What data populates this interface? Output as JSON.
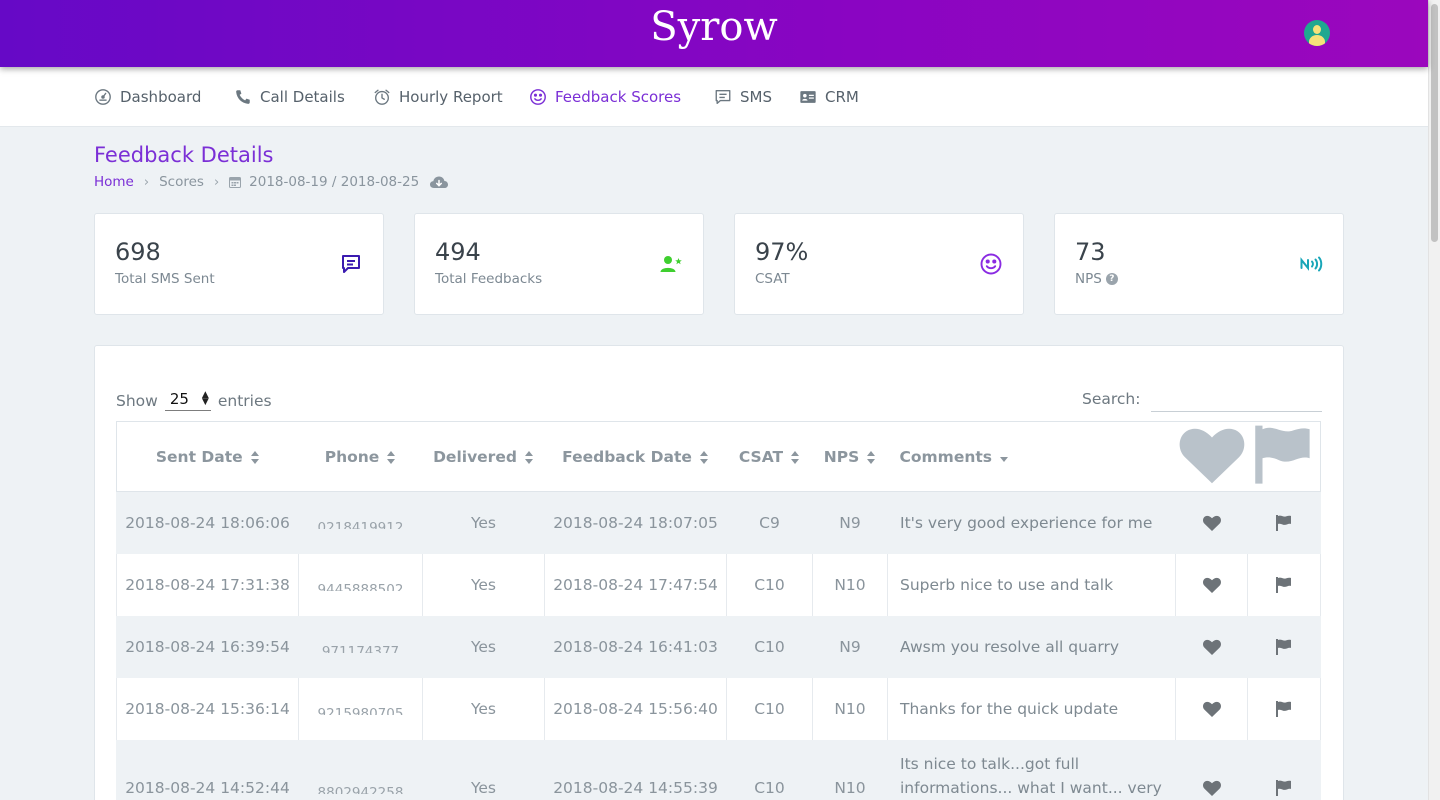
{
  "app": {
    "logo": "Syrow"
  },
  "nav": {
    "items": [
      {
        "label": "Dashboard",
        "icon": "dashboard-gauge-icon"
      },
      {
        "label": "Call Details",
        "icon": "phone-icon"
      },
      {
        "label": "Hourly Report",
        "icon": "alarm-clock-icon"
      },
      {
        "label": "Feedback Scores",
        "icon": "smiley-icon",
        "active": true
      },
      {
        "label": "SMS",
        "icon": "message-icon"
      },
      {
        "label": "CRM",
        "icon": "contact-card-icon"
      }
    ]
  },
  "page": {
    "title": "Feedback Details",
    "breadcrumb": {
      "home": "Home",
      "scores": "Scores",
      "date_range": "2018-08-19 / 2018-08-25"
    }
  },
  "stats": [
    {
      "value": "698",
      "label": "Total SMS Sent",
      "icon": "message-icon",
      "color": "#3b1bb0"
    },
    {
      "value": "494",
      "label": "Total Feedbacks",
      "icon": "user-star-icon",
      "color": "#3fcf2f"
    },
    {
      "value": "97%",
      "label": "CSAT",
      "icon": "smiley-icon",
      "color": "#8a2be2"
    },
    {
      "value": "73",
      "label": "NPS",
      "icon": "nfc-signal-icon",
      "color": "#18a6b8"
    }
  ],
  "table": {
    "show_label": "Show",
    "entries_value": "25",
    "entries_label": "entries",
    "search_label": "Search:",
    "columns": [
      "Sent Date",
      "Phone",
      "Delivered",
      "Feedback Date",
      "CSAT",
      "NPS",
      "Comments"
    ],
    "rows": [
      {
        "sent": "2018-08-24 18:06:06",
        "phone": "0218419912",
        "delivered": "Yes",
        "feedback": "2018-08-24 18:07:05",
        "csat": "C9",
        "nps": "N9",
        "comment": "It's very good experience for me"
      },
      {
        "sent": "2018-08-24 17:31:38",
        "phone": "9445888502",
        "delivered": "Yes",
        "feedback": "2018-08-24 17:47:54",
        "csat": "C10",
        "nps": "N10",
        "comment": "Superb nice to use and talk"
      },
      {
        "sent": "2018-08-24 16:39:54",
        "phone": "971174377",
        "delivered": "Yes",
        "feedback": "2018-08-24 16:41:03",
        "csat": "C10",
        "nps": "N9",
        "comment": "Awsm you resolve all quarry"
      },
      {
        "sent": "2018-08-24 15:36:14",
        "phone": "9215980705",
        "delivered": "Yes",
        "feedback": "2018-08-24 15:56:40",
        "csat": "C10",
        "nps": "N10",
        "comment": "Thanks for the quick update"
      },
      {
        "sent": "2018-08-24 14:52:44",
        "phone": "8802942258",
        "delivered": "Yes",
        "feedback": "2018-08-24 14:55:39",
        "csat": "C10",
        "nps": "N10",
        "comment": "Its nice to talk...got full informations... what I want... very friendly..."
      }
    ]
  },
  "colors": {
    "brand_start": "#6609c6",
    "brand_end": "#9b07bd",
    "accent": "#7b2fd6"
  }
}
